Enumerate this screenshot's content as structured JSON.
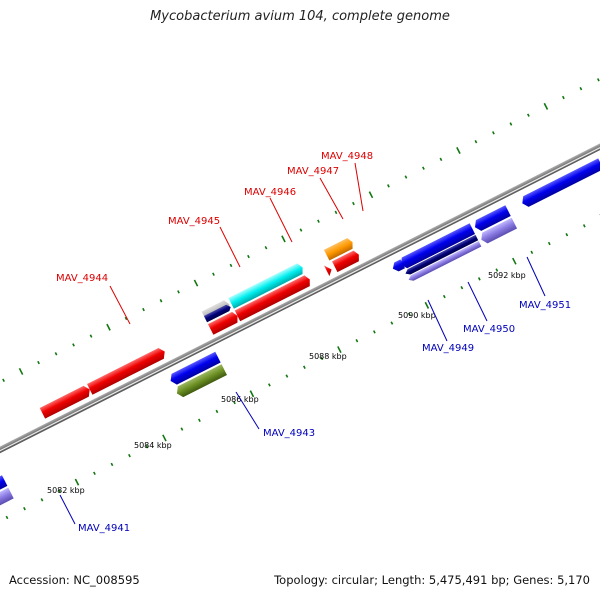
{
  "title": "Mycobacterium avium 104, complete genome",
  "footer": {
    "accession": "Accession: NC_008595",
    "info": "Topology: circular; Length: 5,475,491 bp; Genes: 5,170"
  },
  "colors": {
    "upper_label": "#dd0000",
    "lower_label": "#0000bb",
    "backbone": "#888888",
    "tick": "#117711"
  },
  "kbp_labels": [
    "5082 kbp",
    "5084 kbp",
    "5086 kbp",
    "5088 kbp",
    "5090 kbp",
    "5092 kbp"
  ],
  "genes": [
    {
      "id": "MAV_4941",
      "label": "MAV_4941",
      "strand": "minus"
    },
    {
      "id": "MAV_4943",
      "label": "MAV_4943",
      "strand": "minus"
    },
    {
      "id": "MAV_4944",
      "label": "MAV_4944",
      "strand": "plus"
    },
    {
      "id": "MAV_4945",
      "label": "MAV_4945",
      "strand": "plus"
    },
    {
      "id": "MAV_4946",
      "label": "MAV_4946",
      "strand": "plus"
    },
    {
      "id": "MAV_4947",
      "label": "MAV_4947",
      "strand": "plus"
    },
    {
      "id": "MAV_4948",
      "label": "MAV_4948",
      "strand": "plus"
    },
    {
      "id": "MAV_4949",
      "label": "MAV_4949",
      "strand": "minus"
    },
    {
      "id": "MAV_4950",
      "label": "MAV_4950",
      "strand": "minus"
    },
    {
      "id": "MAV_4951",
      "label": "MAV_4951",
      "strand": "minus"
    }
  ]
}
